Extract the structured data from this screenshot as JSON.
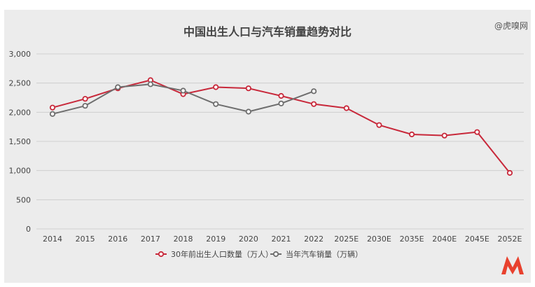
{
  "watermark": "@虎嗅网",
  "colors": {
    "background": "#ececec",
    "grid": "#cfcfcf",
    "births": "#c8283a",
    "car_sales": "#6e6e6e",
    "text": "#444444",
    "logo": "#e8412e"
  },
  "chart_data": {
    "type": "line",
    "title": "中国出生人口与汽车销量趋势对比",
    "xlabel": "",
    "ylabel": "",
    "categories": [
      "2014",
      "2015",
      "2016",
      "2017",
      "2018",
      "2019",
      "2020",
      "2021",
      "2022",
      "2025E",
      "2030E",
      "2035E",
      "2040E",
      "2045E",
      "2052E"
    ],
    "ylim": [
      0,
      3000
    ],
    "yticks": [
      0,
      500,
      1000,
      1500,
      2000,
      2500,
      3000
    ],
    "ytick_labels": [
      "0",
      "500",
      "1,000",
      "1,500",
      "2,000",
      "2,500",
      "3,000"
    ],
    "grid": true,
    "legend_position": "bottom-center",
    "series": [
      {
        "name": "30年前出生人口数量（万人）",
        "color_key": "births",
        "values": [
          2080,
          2230,
          2410,
          2550,
          2310,
          2430,
          2410,
          2280,
          2140,
          2070,
          1780,
          1620,
          1600,
          1660,
          960
        ]
      },
      {
        "name": "当年汽车销量（万辆）",
        "color_key": "car_sales",
        "values": [
          1970,
          2110,
          2430,
          2480,
          2370,
          2140,
          2010,
          2150,
          2360,
          null,
          null,
          null,
          null,
          null,
          null
        ]
      }
    ]
  }
}
